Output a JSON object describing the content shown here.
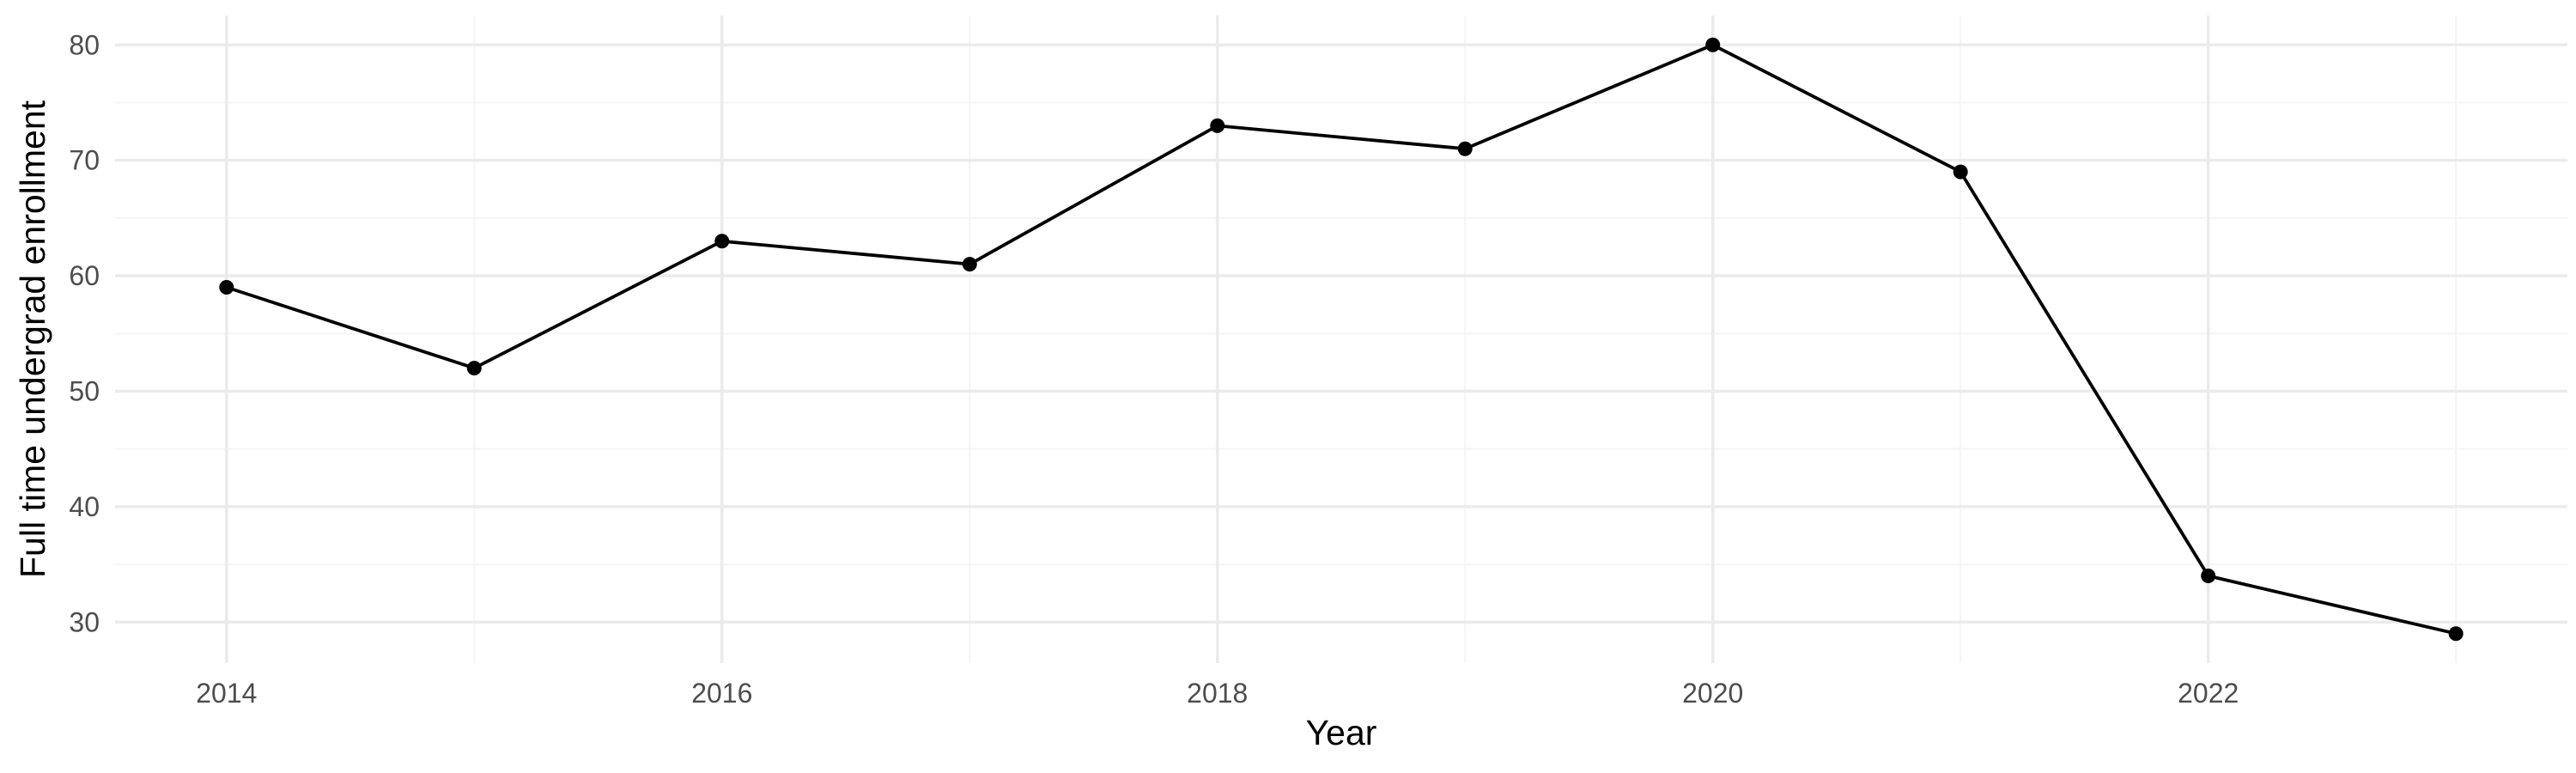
{
  "chart_data": {
    "type": "line",
    "title": "",
    "xlabel": "Year",
    "ylabel": "Full time undergrad enrollment",
    "x": [
      2014,
      2015,
      2016,
      2017,
      2018,
      2019,
      2020,
      2021,
      2022,
      2023
    ],
    "series": [
      {
        "values": [
          59,
          52,
          63,
          61,
          73,
          71,
          80,
          69,
          34,
          29
        ]
      }
    ],
    "xlim": [
      2013.55,
      2023.45
    ],
    "ylim": [
      26.45,
      82.55
    ],
    "x_ticks": [
      2014,
      2016,
      2018,
      2020,
      2022
    ],
    "x_tick_labels": [
      "2014",
      "2016",
      "2018",
      "2020",
      "2022"
    ],
    "y_ticks": [
      30,
      40,
      50,
      60,
      70,
      80
    ],
    "y_tick_labels": [
      "30",
      "40",
      "50",
      "60",
      "70",
      "80"
    ],
    "grid": true,
    "legend": "none",
    "colors": {
      "line": "#000000",
      "grid_major": "#ebebeb",
      "grid_minor": "#f5f5f5",
      "tick_text": "#4d4d4d"
    }
  }
}
